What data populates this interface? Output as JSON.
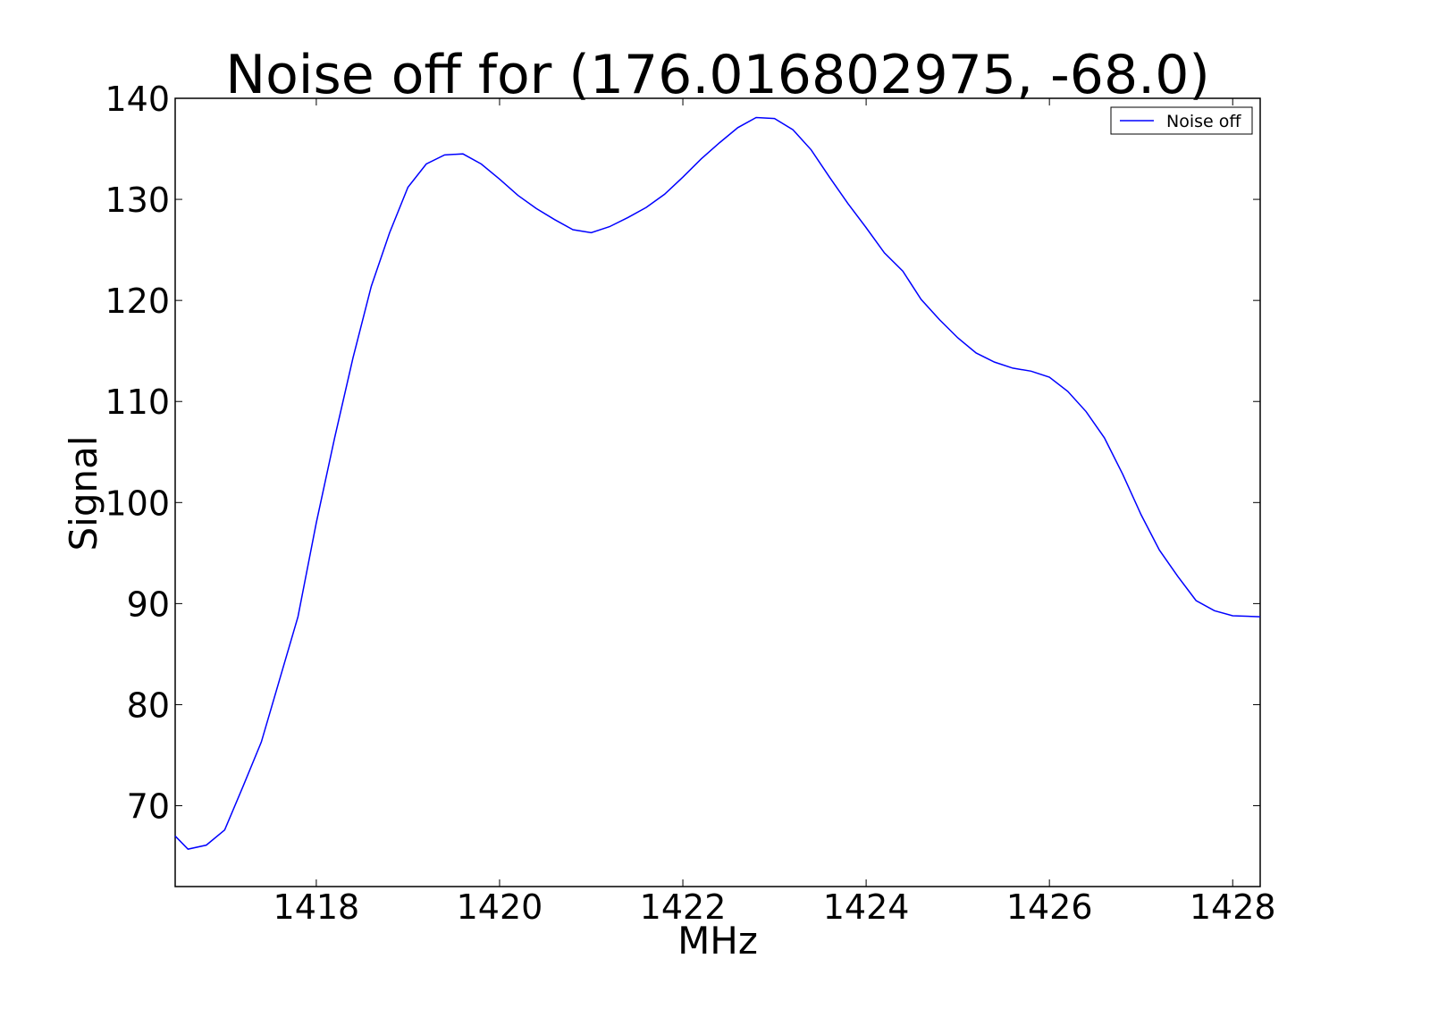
{
  "chart_data": {
    "type": "line",
    "title": "Noise off for (176.016802975, -68.0)",
    "xlabel": "MHz",
    "ylabel": "Signal",
    "x": [
      1416.46,
      1416.6,
      1416.8,
      1417.0,
      1417.2,
      1417.4,
      1417.6,
      1417.8,
      1418.0,
      1418.2,
      1418.4,
      1418.6,
      1418.8,
      1419.0,
      1419.2,
      1419.4,
      1419.6,
      1419.8,
      1420.0,
      1420.2,
      1420.4,
      1420.6,
      1420.8,
      1421.0,
      1421.2,
      1421.4,
      1421.6,
      1421.8,
      1422.0,
      1422.2,
      1422.4,
      1422.6,
      1422.8,
      1423.0,
      1423.2,
      1423.4,
      1423.6,
      1423.8,
      1424.0,
      1424.2,
      1424.4,
      1424.6,
      1424.8,
      1425.0,
      1425.2,
      1425.4,
      1425.6,
      1425.8,
      1426.0,
      1426.2,
      1426.4,
      1426.6,
      1426.8,
      1427.0,
      1427.2,
      1427.4,
      1427.6,
      1427.8,
      1428.0,
      1428.3
    ],
    "series": [
      {
        "name": "Noise off",
        "color": "#0000ff",
        "values": [
          67,
          65.7,
          66.1,
          67.6,
          71.9,
          76.3,
          82.5,
          88.7,
          98,
          106.4,
          114.3,
          121.4,
          126.7,
          131.2,
          133.5,
          134.4,
          134.5,
          133.5,
          132,
          130.4,
          129.1,
          128,
          127,
          126.7,
          127.3,
          128.2,
          129.2,
          130.5,
          132.2,
          134,
          135.6,
          137.1,
          138.1,
          138,
          136.9,
          134.9,
          132.2,
          129.6,
          127.2,
          124.7,
          122.9,
          120.1,
          118.1,
          116.3,
          114.8,
          113.9,
          113.3,
          113,
          112.4,
          111,
          109,
          106.4,
          102.8,
          98.8,
          95.3,
          92.7,
          90.3,
          89.3,
          88.8,
          88.7
        ]
      }
    ],
    "xlim": [
      1416.46,
      1428.3
    ],
    "xticks": [
      1418,
      1420,
      1422,
      1424,
      1426,
      1428
    ],
    "ylim": [
      62,
      140
    ],
    "yticks": [
      70,
      80,
      90,
      100,
      110,
      120,
      130,
      140
    ],
    "legend": "upper right",
    "grid": false
  }
}
